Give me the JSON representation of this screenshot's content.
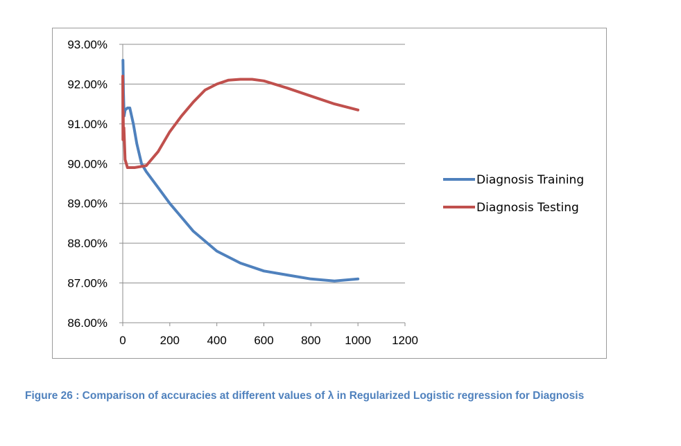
{
  "chart_data": {
    "type": "line",
    "xlim": [
      0,
      1200
    ],
    "ylim": [
      86.0,
      93.0
    ],
    "x_ticks": [
      "0",
      "200",
      "400",
      "600",
      "800",
      "1000",
      "1200"
    ],
    "y_ticks": [
      "86.00%",
      "87.00%",
      "88.00%",
      "89.00%",
      "90.00%",
      "91.00%",
      "92.00%",
      "93.00%"
    ],
    "grid": "horizontal",
    "legend_position": "right",
    "series": [
      {
        "name": "Diagnosis Training",
        "color": "#4f81bd",
        "points": [
          [
            1,
            92.6
          ],
          [
            3,
            91.8
          ],
          [
            6,
            91.2
          ],
          [
            10,
            91.35
          ],
          [
            20,
            91.4
          ],
          [
            30,
            91.4
          ],
          [
            45,
            91.0
          ],
          [
            60,
            90.5
          ],
          [
            80,
            90.0
          ],
          [
            100,
            89.8
          ],
          [
            150,
            89.4
          ],
          [
            200,
            89.0
          ],
          [
            300,
            88.3
          ],
          [
            400,
            87.8
          ],
          [
            500,
            87.5
          ],
          [
            600,
            87.3
          ],
          [
            700,
            87.2
          ],
          [
            800,
            87.1
          ],
          [
            900,
            87.05
          ],
          [
            1000,
            87.1
          ]
        ]
      },
      {
        "name": "Diagnosis Testing",
        "color": "#c0504d",
        "points": [
          [
            0,
            92.2
          ],
          [
            1,
            90.6
          ],
          [
            2,
            91.3
          ],
          [
            3,
            90.7
          ],
          [
            5,
            90.9
          ],
          [
            10,
            90.1
          ],
          [
            20,
            89.9
          ],
          [
            50,
            89.9
          ],
          [
            100,
            89.95
          ],
          [
            150,
            90.3
          ],
          [
            200,
            90.8
          ],
          [
            250,
            91.2
          ],
          [
            300,
            91.55
          ],
          [
            350,
            91.85
          ],
          [
            400,
            92.0
          ],
          [
            450,
            92.1
          ],
          [
            500,
            92.12
          ],
          [
            550,
            92.12
          ],
          [
            600,
            92.08
          ],
          [
            700,
            91.9
          ],
          [
            800,
            91.7
          ],
          [
            900,
            91.5
          ],
          [
            1000,
            91.35
          ]
        ]
      }
    ]
  },
  "figure": {
    "caption": "Figure 26 : Comparison of accuracies at different values of λ in Regularized Logistic regression for Diagnosis"
  }
}
